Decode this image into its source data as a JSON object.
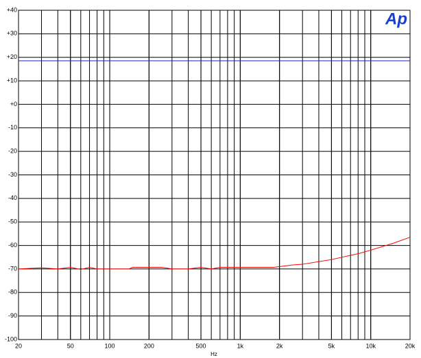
{
  "chart_data": {
    "type": "line",
    "logo": "Ap",
    "x_label": "Hz",
    "xlim": [
      20,
      20000
    ],
    "ylim": [
      -100,
      40
    ],
    "xscale": "log",
    "grid": true,
    "xticks": [
      20,
      50,
      100,
      200,
      500,
      {
        "value": 1000,
        "label": "1k"
      },
      {
        "value": 2000,
        "label": "2k"
      },
      {
        "value": 5000,
        "label": "5k"
      },
      {
        "value": 10000,
        "label": "10k"
      },
      {
        "value": 20000,
        "label": "20k"
      }
    ],
    "yticks": [
      {
        "value": 40,
        "label": "+40"
      },
      {
        "value": 30,
        "label": "+30"
      },
      {
        "value": 20,
        "label": "+20"
      },
      {
        "value": 10,
        "label": "+10"
      },
      {
        "value": 0,
        "label": "+0"
      },
      -10,
      -20,
      -30,
      -40,
      -50,
      -60,
      -70,
      -80,
      -90,
      -100
    ],
    "series": [
      {
        "name": null,
        "color": "#2020c0",
        "x": [
          20,
          20000
        ],
        "values": [
          18.5,
          18.5
        ]
      },
      {
        "name": null,
        "color": "#ff0000",
        "x": [
          20,
          30,
          40,
          50,
          60,
          70,
          80,
          100,
          140,
          150,
          250,
          300,
          400,
          500,
          600,
          700,
          1000,
          1800,
          2000,
          2500,
          3000,
          5000,
          8000,
          10000,
          15000,
          20000
        ],
        "values": [
          -70,
          -69.5,
          -70,
          -69.3,
          -70.2,
          -69.3,
          -70,
          -70,
          -70,
          -69.3,
          -69.3,
          -70,
          -70,
          -69.3,
          -70,
          -69.3,
          -69.3,
          -69.3,
          -69,
          -68.3,
          -68,
          -66,
          -63.5,
          -62,
          -59,
          -56.5
        ]
      }
    ]
  }
}
